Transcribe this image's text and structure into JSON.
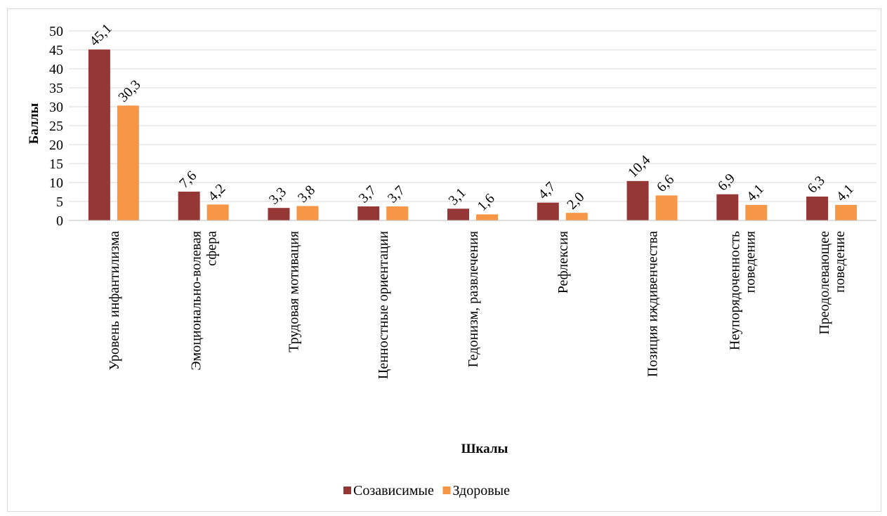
{
  "chart_data": {
    "type": "bar",
    "title": "",
    "xlabel": "Шкалы",
    "ylabel": "Баллы",
    "ylim": [
      0,
      50
    ],
    "ytick_step": 5,
    "grid": true,
    "legend_position": "bottom",
    "categories": [
      [
        "Уровень инфантилизма"
      ],
      [
        "Эмоционально-волевая",
        "сфера"
      ],
      [
        "Трудовая мотивация"
      ],
      [
        "Ценностные ориентации"
      ],
      [
        "Гедонизм, развлечения"
      ],
      [
        "Рефлексия"
      ],
      [
        "Позиция иждивенчества"
      ],
      [
        "Неупорядоченность",
        "поведения"
      ],
      [
        "Преодолевающее",
        "поведение"
      ]
    ],
    "series": [
      {
        "name": "Созависимые",
        "color": "#953735",
        "values": [
          45.1,
          7.6,
          3.3,
          3.7,
          3.1,
          4.7,
          10.4,
          6.9,
          6.3
        ]
      },
      {
        "name": "Здоровые",
        "color": "#F79646",
        "values": [
          30.3,
          4.2,
          3.8,
          3.7,
          1.6,
          2.0,
          6.6,
          4.1,
          4.1
        ]
      }
    ]
  }
}
